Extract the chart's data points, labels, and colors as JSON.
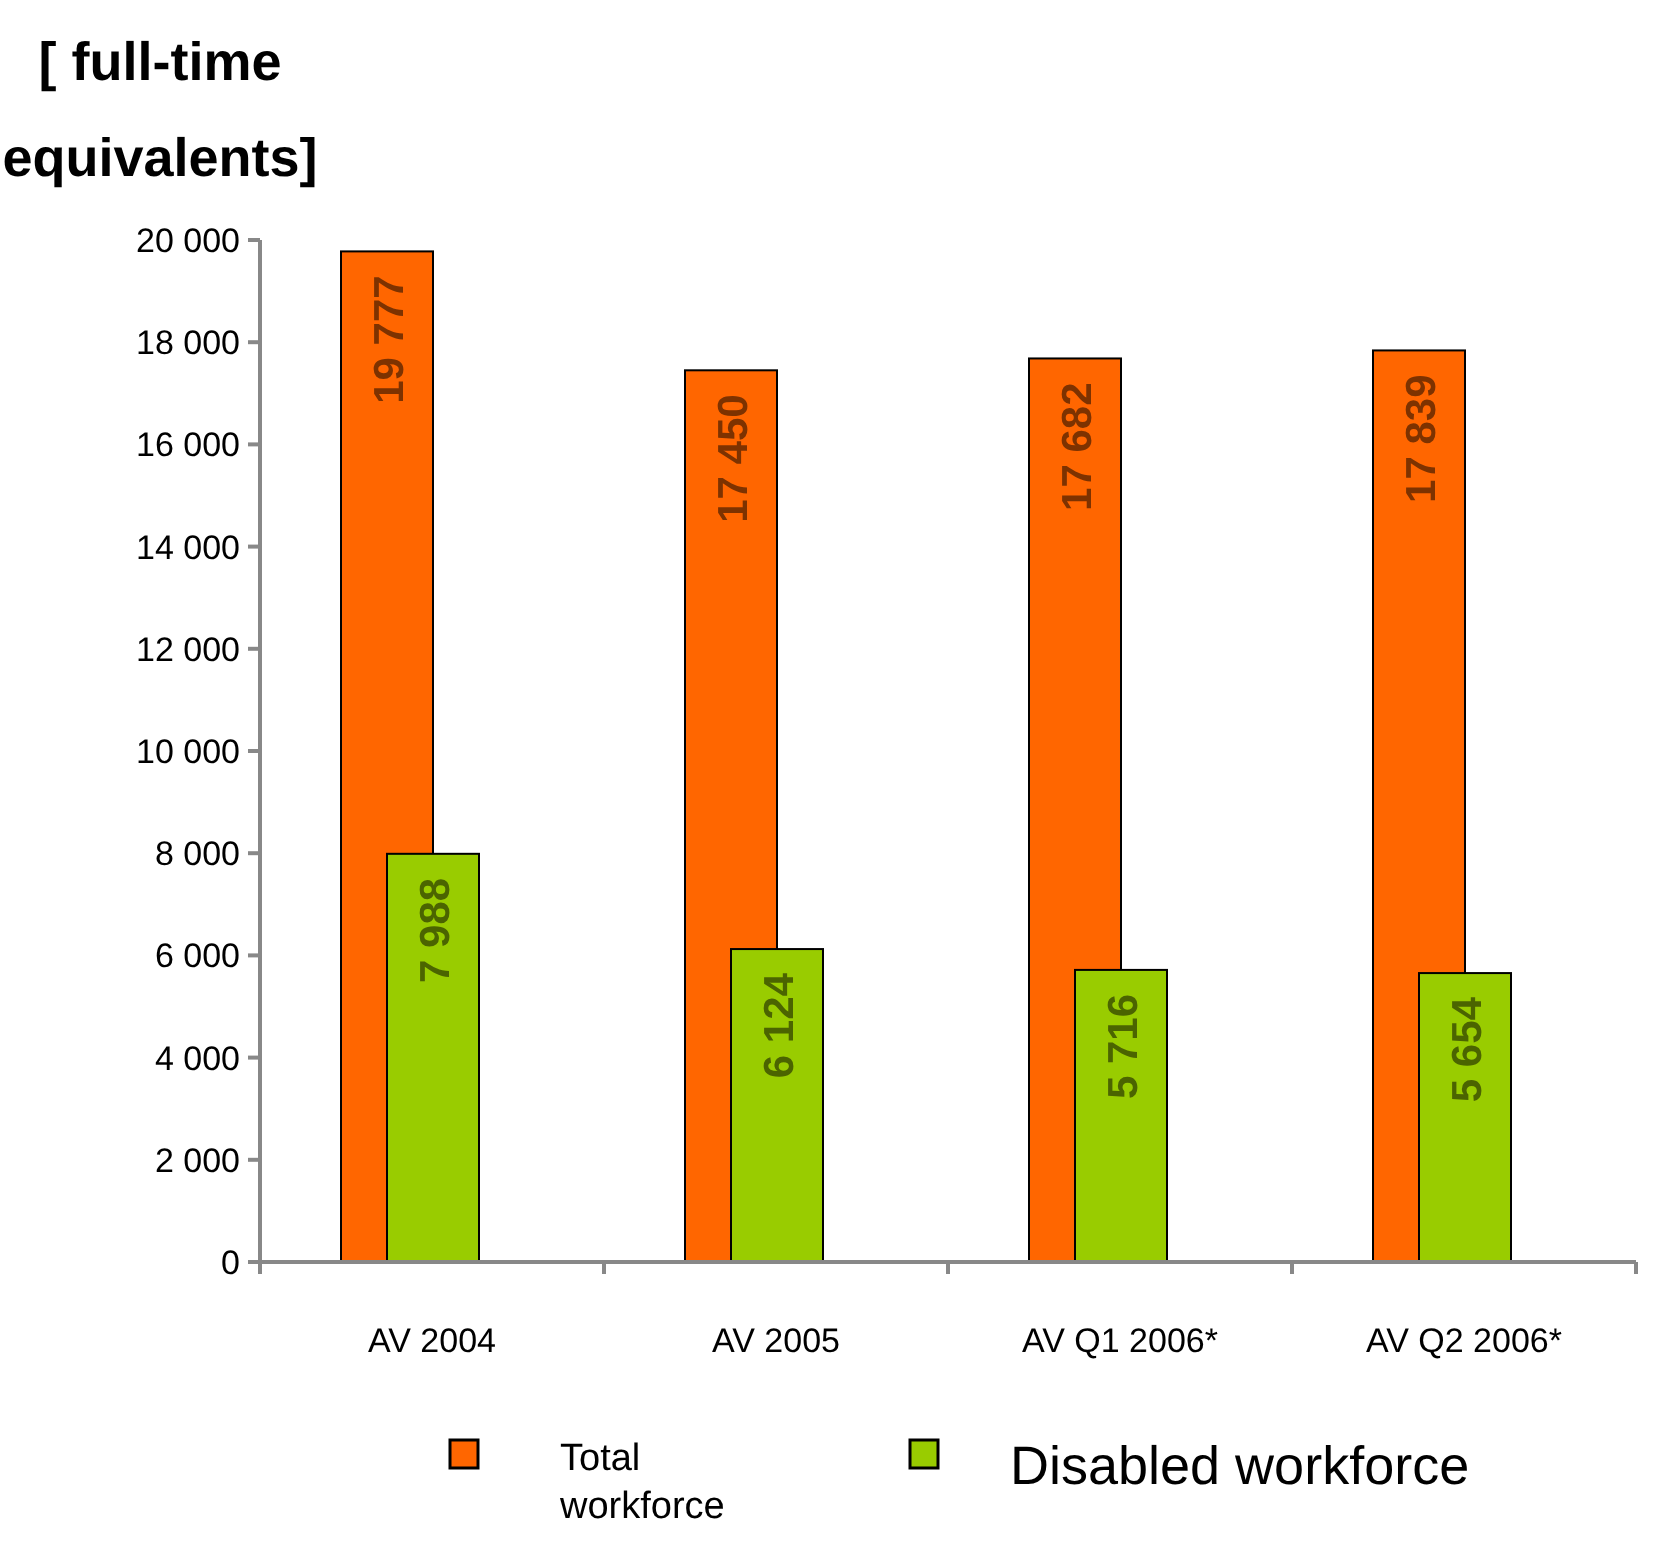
{
  "chart_data": {
    "type": "bar",
    "ylabel": "[ full-time equivalents]",
    "categories": [
      "AV 2004",
      "AV 2005",
      "AV Q1 2006*",
      "AV Q2 2006*"
    ],
    "series": [
      {
        "name": "Total workforce",
        "color": "#ff6600",
        "values": [
          19777,
          17450,
          17682,
          17839
        ],
        "value_labels": [
          "19 777",
          "17 450",
          "17 682",
          "17 839"
        ]
      },
      {
        "name": "Disabled workforce",
        "color": "#99cc00",
        "values": [
          7988,
          6124,
          5716,
          5654
        ],
        "value_labels": [
          "7 988",
          "6 124",
          "5 716",
          "5 654"
        ]
      }
    ],
    "ylim": [
      0,
      20000
    ],
    "yticks": [
      {
        "value": 0,
        "label": "0"
      },
      {
        "value": 2000,
        "label": "2 000"
      },
      {
        "value": 4000,
        "label": "4 000"
      },
      {
        "value": 6000,
        "label": "6 000"
      },
      {
        "value": 8000,
        "label": "8 000"
      },
      {
        "value": 10000,
        "label": "10 000"
      },
      {
        "value": 12000,
        "label": "12 000"
      },
      {
        "value": 14000,
        "label": "14 000"
      },
      {
        "value": 16000,
        "label": "16 000"
      },
      {
        "value": 18000,
        "label": "18 000"
      },
      {
        "value": 20000,
        "label": "20 000"
      }
    ],
    "grid": false,
    "legend": "bottom"
  }
}
